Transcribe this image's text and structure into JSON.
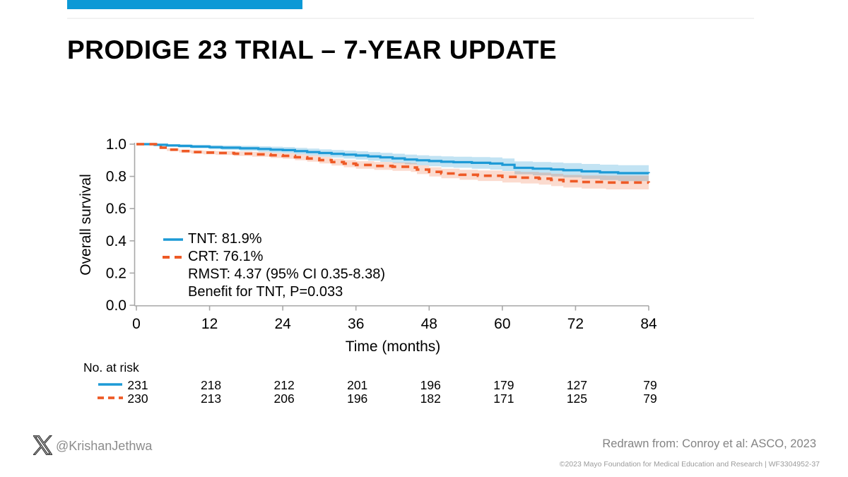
{
  "slide": {
    "title": "PRODIGE 23 TRIAL – 7-YEAR UPDATE",
    "accent_color": "#0C99D6"
  },
  "chart_data": {
    "type": "line",
    "subtype": "kaplan-meier-step-with-ci-bands",
    "title": "",
    "xlabel": "Time (months)",
    "ylabel": "Overall survival",
    "xlim": [
      0,
      84
    ],
    "ylim": [
      0.0,
      1.0
    ],
    "x_ticks": [
      0,
      12,
      24,
      36,
      48,
      60,
      72,
      84
    ],
    "y_ticks": [
      0.0,
      0.2,
      0.4,
      0.6,
      0.8,
      1.0
    ],
    "grid": false,
    "legend_position": "inside-lower-left",
    "axis_color": "#A8A8A8",
    "series": [
      {
        "name": "TNT",
        "final_survival": "81.9%",
        "color": "#1D9AD6",
        "line_style": "solid",
        "band_color": "rgba(29,150,210,0.27)",
        "ci_half_start": 0.006,
        "ci_half_end": 0.052,
        "steps": [
          [
            0,
            1.0
          ],
          [
            2,
            1.0
          ],
          [
            3,
            0.996
          ],
          [
            5,
            0.992
          ],
          [
            7,
            0.989
          ],
          [
            9,
            0.985
          ],
          [
            12,
            0.981
          ],
          [
            14,
            0.978
          ],
          [
            17,
            0.974
          ],
          [
            20,
            0.97
          ],
          [
            22,
            0.966
          ],
          [
            24,
            0.963
          ],
          [
            26,
            0.957
          ],
          [
            28,
            0.951
          ],
          [
            30,
            0.945
          ],
          [
            32,
            0.94
          ],
          [
            34,
            0.935
          ],
          [
            36,
            0.93
          ],
          [
            38,
            0.924
          ],
          [
            40,
            0.918
          ],
          [
            42,
            0.912
          ],
          [
            44,
            0.905
          ],
          [
            46,
            0.9
          ],
          [
            48,
            0.895
          ],
          [
            50,
            0.891
          ],
          [
            52,
            0.888
          ],
          [
            55,
            0.884
          ],
          [
            58,
            0.88
          ],
          [
            60,
            0.872
          ],
          [
            62,
            0.853
          ],
          [
            65,
            0.848
          ],
          [
            68,
            0.843
          ],
          [
            70,
            0.838
          ],
          [
            73,
            0.831
          ],
          [
            76,
            0.825
          ],
          [
            79,
            0.82
          ],
          [
            84,
            0.819
          ]
        ]
      },
      {
        "name": "CRT",
        "final_survival": "76.1%",
        "color": "#EE5A26",
        "line_style": "dashed",
        "band_color": "rgba(238,90,38,0.22)",
        "ci_half_start": 0.006,
        "ci_half_end": 0.046,
        "steps": [
          [
            0,
            1.0
          ],
          [
            3,
            1.0
          ],
          [
            4,
            0.978
          ],
          [
            5,
            0.966
          ],
          [
            7,
            0.957
          ],
          [
            9,
            0.951
          ],
          [
            11,
            0.948
          ],
          [
            13,
            0.945
          ],
          [
            16,
            0.941
          ],
          [
            19,
            0.937
          ],
          [
            22,
            0.931
          ],
          [
            24,
            0.927
          ],
          [
            26,
            0.919
          ],
          [
            28,
            0.911
          ],
          [
            30,
            0.901
          ],
          [
            32,
            0.889
          ],
          [
            34,
            0.879
          ],
          [
            36,
            0.871
          ],
          [
            39,
            0.865
          ],
          [
            42,
            0.86
          ],
          [
            45,
            0.855
          ],
          [
            46,
            0.842
          ],
          [
            48,
            0.828
          ],
          [
            50,
            0.818
          ],
          [
            53,
            0.81
          ],
          [
            56,
            0.804
          ],
          [
            60,
            0.797
          ],
          [
            63,
            0.792
          ],
          [
            66,
            0.786
          ],
          [
            68,
            0.778
          ],
          [
            70,
            0.77
          ],
          [
            73,
            0.765
          ],
          [
            77,
            0.762
          ],
          [
            84,
            0.761
          ]
        ]
      }
    ],
    "annotations": [
      "RMST: 4.37 (95% CI 0.35-8.38)",
      "Benefit for TNT, P=0.033"
    ]
  },
  "legend": {
    "items": [
      {
        "label": "TNT: 81.9%",
        "marker": "solid-blue-line"
      },
      {
        "label": "CRT: 76.1%",
        "marker": "dashed-orange-line"
      },
      {
        "label": "RMST: 4.37 (95% CI 0.35-8.38)",
        "marker": "none"
      },
      {
        "label": "Benefit for TNT, P=0.033",
        "marker": "none"
      }
    ]
  },
  "at_risk": {
    "label": "No. at risk",
    "times": [
      0,
      12,
      24,
      36,
      48,
      60,
      72,
      84
    ],
    "rows": [
      {
        "series": "TNT",
        "counts": [
          231,
          218,
          212,
          201,
          196,
          179,
          127,
          79
        ]
      },
      {
        "series": "CRT",
        "counts": [
          230,
          213,
          206,
          196,
          182,
          171,
          125,
          79
        ]
      }
    ]
  },
  "footer": {
    "handle": "@KrishanJethwa",
    "source": "Redrawn from: Conroy et al: ASCO, 2023",
    "copyright": "©2023 Mayo Foundation for Medical Education and Research  |  WF3304952-37"
  }
}
